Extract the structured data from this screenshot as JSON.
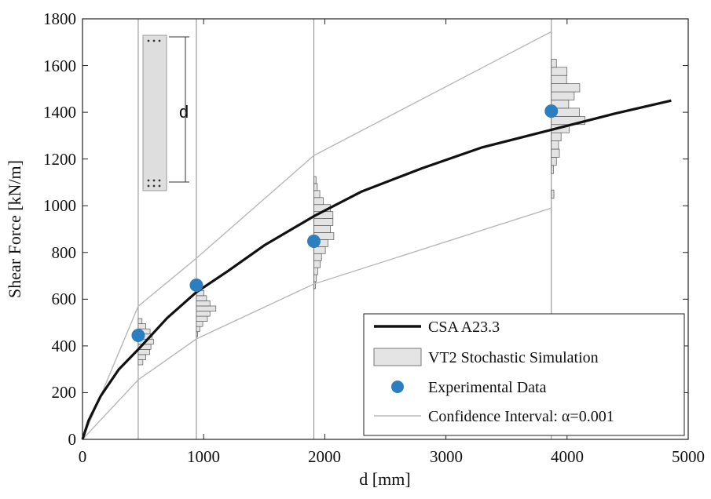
{
  "chart_data": {
    "type": "line",
    "title": "",
    "xlabel": "d [mm]",
    "ylabel": "Shear Force [kN/m]",
    "xlim": [
      0,
      5000
    ],
    "ylim": [
      0,
      1800
    ],
    "x_ticks": [
      "0",
      "1000",
      "2000",
      "3000",
      "4000",
      "5000"
    ],
    "y_ticks": [
      "0",
      "200",
      "400",
      "600",
      "800",
      "1000",
      "1200",
      "1400",
      "1600",
      "1800"
    ],
    "series": [
      {
        "name": "CSA A23.3",
        "kind": "line",
        "x": [
          0,
          50,
          150,
          300,
          460,
          700,
          940,
          1200,
          1500,
          1910,
          2300,
          2800,
          3300,
          3870,
          4400,
          4860
        ],
        "y": [
          0,
          80,
          185,
          300,
          385,
          520,
          630,
          720,
          830,
          955,
          1060,
          1160,
          1250,
          1325,
          1395,
          1450
        ]
      },
      {
        "name": "Experimental Data",
        "kind": "scatter",
        "x": [
          460,
          940,
          1910,
          3870
        ],
        "y": [
          445,
          660,
          848,
          1405
        ]
      },
      {
        "name": "Confidence Interval upper",
        "kind": "line",
        "x": [
          0,
          460,
          940,
          1910,
          3870
        ],
        "y": [
          0,
          570,
          775,
          1215,
          1745
        ]
      },
      {
        "name": "Confidence Interval lower",
        "kind": "line",
        "x": [
          0,
          460,
          940,
          1910,
          3870
        ],
        "y": [
          0,
          255,
          430,
          665,
          990
        ]
      }
    ],
    "histograms": [
      {
        "d": 460,
        "bin_width": 22,
        "bins": [
          {
            "y": 330,
            "v": 110
          },
          {
            "y": 352,
            "v": 180
          },
          {
            "y": 374,
            "v": 270
          },
          {
            "y": 396,
            "v": 300
          },
          {
            "y": 418,
            "v": 360
          },
          {
            "y": 440,
            "v": 330
          },
          {
            "y": 462,
            "v": 280
          },
          {
            "y": 484,
            "v": 180
          },
          {
            "y": 506,
            "v": 90
          }
        ]
      },
      {
        "d": 940,
        "bin_width": 22,
        "bins": [
          {
            "y": 450,
            "v": 30
          },
          {
            "y": 472,
            "v": 80
          },
          {
            "y": 494,
            "v": 150
          },
          {
            "y": 516,
            "v": 260
          },
          {
            "y": 538,
            "v": 320
          },
          {
            "y": 560,
            "v": 460
          },
          {
            "y": 582,
            "v": 320
          },
          {
            "y": 604,
            "v": 240
          },
          {
            "y": 626,
            "v": 180
          },
          {
            "y": 648,
            "v": 100
          },
          {
            "y": 670,
            "v": 40
          }
        ]
      },
      {
        "d": 1910,
        "bin_width": 30,
        "bins": [
          {
            "y": 660,
            "v": 40
          },
          {
            "y": 690,
            "v": 60
          },
          {
            "y": 720,
            "v": 90
          },
          {
            "y": 750,
            "v": 150
          },
          {
            "y": 780,
            "v": 180
          },
          {
            "y": 810,
            "v": 270
          },
          {
            "y": 840,
            "v": 330
          },
          {
            "y": 870,
            "v": 470
          },
          {
            "y": 900,
            "v": 390
          },
          {
            "y": 930,
            "v": 450
          },
          {
            "y": 960,
            "v": 450
          },
          {
            "y": 990,
            "v": 390
          },
          {
            "y": 1020,
            "v": 220
          },
          {
            "y": 1050,
            "v": 140
          },
          {
            "y": 1080,
            "v": 80
          },
          {
            "y": 1110,
            "v": 50
          }
        ]
      },
      {
        "d": 3870,
        "bin_width": 35,
        "bins": [
          {
            "y": 1050,
            "v": 60
          },
          {
            "y": 1155,
            "v": 50
          },
          {
            "y": 1190,
            "v": 120
          },
          {
            "y": 1225,
            "v": 190
          },
          {
            "y": 1260,
            "v": 170
          },
          {
            "y": 1295,
            "v": 230
          },
          {
            "y": 1330,
            "v": 420
          },
          {
            "y": 1365,
            "v": 790
          },
          {
            "y": 1400,
            "v": 660
          },
          {
            "y": 1435,
            "v": 410
          },
          {
            "y": 1470,
            "v": 540
          },
          {
            "y": 1505,
            "v": 670
          },
          {
            "y": 1540,
            "v": 360
          },
          {
            "y": 1575,
            "v": 370
          },
          {
            "y": 1610,
            "v": 120
          }
        ]
      }
    ],
    "legend": {
      "position": "bottom-right",
      "entries": [
        "CSA A23.3",
        "VT2 Stochastic Simulation",
        "Experimental Data",
        "Confidence Interval: α=0.001"
      ]
    },
    "annotation": "d",
    "colors": {
      "model_line": "#111111",
      "marker": "#2b7fc0",
      "confidence": "#b8b8b8",
      "hist_fill": "#e4e4e4",
      "hist_edge": "#555555",
      "vertical": "#888888"
    }
  }
}
